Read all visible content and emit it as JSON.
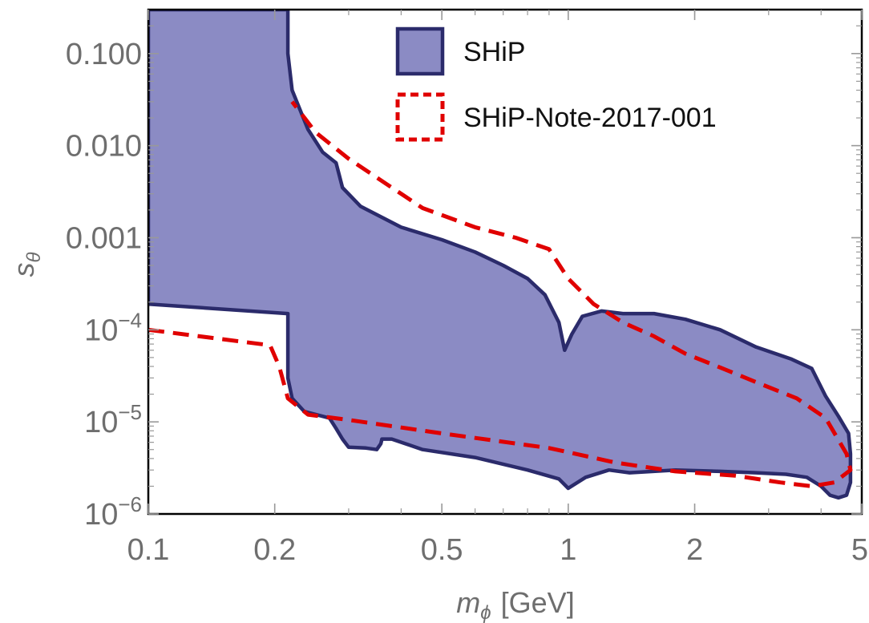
{
  "chart_data": {
    "type": "area",
    "x_scale": "log",
    "y_scale": "log",
    "xlabel": "m",
    "xlabel_sub": "ϕ",
    "xlabel_unit": "[GeV]",
    "ylabel": "s",
    "ylabel_sub": "θ",
    "xlim": [
      0.1,
      5.0
    ],
    "ylim": [
      1e-06,
      0.3
    ],
    "x_ticks": [
      {
        "value": 0.1,
        "label": "0.1"
      },
      {
        "value": 0.2,
        "label": "0.2"
      },
      {
        "value": 0.5,
        "label": "0.5"
      },
      {
        "value": 1,
        "label": "1"
      },
      {
        "value": 2,
        "label": "2"
      },
      {
        "value": 5,
        "label": "5"
      }
    ],
    "y_ticks": [
      {
        "value": 0.1,
        "label": "0.100"
      },
      {
        "value": 0.01,
        "label": "0.010"
      },
      {
        "value": 0.001,
        "label": "0.001"
      },
      {
        "value": 0.0001,
        "base": "10",
        "exp": "−4"
      },
      {
        "value": 1e-05,
        "base": "10",
        "exp": "−5"
      },
      {
        "value": 1e-06,
        "base": "10",
        "exp": "−6"
      }
    ],
    "grid": false,
    "legend_position": "top-right",
    "series": [
      {
        "name": "SHiP",
        "style": "filled-region",
        "fill": "#8b8bc4",
        "stroke": "#2b2b6b",
        "points": [
          [
            0.1,
            0.3
          ],
          [
            0.215,
            0.3
          ],
          [
            0.215,
            0.1
          ],
          [
            0.22,
            0.04
          ],
          [
            0.24,
            0.015
          ],
          [
            0.26,
            0.0085
          ],
          [
            0.28,
            0.0065
          ],
          [
            0.29,
            0.0035
          ],
          [
            0.32,
            0.0022
          ],
          [
            0.4,
            0.0013
          ],
          [
            0.5,
            0.00095
          ],
          [
            0.6,
            0.0007
          ],
          [
            0.7,
            0.0005
          ],
          [
            0.8,
            0.00036
          ],
          [
            0.88,
            0.00024
          ],
          [
            0.95,
            0.00012
          ],
          [
            0.98,
            6e-05
          ],
          [
            1.02,
            9e-05
          ],
          [
            1.08,
            0.00014
          ],
          [
            1.2,
            0.00016
          ],
          [
            1.35,
            0.00015
          ],
          [
            1.6,
            0.00015
          ],
          [
            1.9,
            0.00013
          ],
          [
            2.3,
            0.0001
          ],
          [
            2.8,
            6.5e-05
          ],
          [
            3.4,
            4.8e-05
          ],
          [
            3.8,
            3.8e-05
          ],
          [
            3.9,
            3e-05
          ],
          [
            4.1,
            1.9e-05
          ],
          [
            4.4,
            1.15e-05
          ],
          [
            4.65,
            7.5e-06
          ],
          [
            4.7,
            4.5e-06
          ],
          [
            4.7,
            2.2e-06
          ],
          [
            4.6,
            1.6e-06
          ],
          [
            4.4,
            1.5e-06
          ],
          [
            4.2,
            1.6e-06
          ],
          [
            4.0,
            2e-06
          ],
          [
            3.7,
            2.5e-06
          ],
          [
            3.3,
            2.7e-06
          ],
          [
            2.8,
            2.8e-06
          ],
          [
            2.3,
            2.9e-06
          ],
          [
            1.8,
            3e-06
          ],
          [
            1.4,
            2.8e-06
          ],
          [
            1.25,
            3e-06
          ],
          [
            1.1,
            2.5e-06
          ],
          [
            1.0,
            1.9e-06
          ],
          [
            0.95,
            2.4e-06
          ],
          [
            0.8,
            3e-06
          ],
          [
            0.6,
            4.1e-06
          ],
          [
            0.45,
            5e-06
          ],
          [
            0.38,
            6.5e-06
          ],
          [
            0.36,
            6.5e-06
          ],
          [
            0.358,
            5.8e-06
          ],
          [
            0.35,
            5e-06
          ],
          [
            0.33,
            5.2e-06
          ],
          [
            0.3,
            5.3e-06
          ],
          [
            0.29,
            6.5e-06
          ],
          [
            0.28,
            8.5e-06
          ],
          [
            0.27,
            1.1e-05
          ],
          [
            0.235,
            1.3e-05
          ],
          [
            0.22,
            1.8e-05
          ],
          [
            0.215,
            3e-05
          ],
          [
            0.215,
            0.00015
          ],
          [
            0.1,
            0.00019
          ]
        ]
      },
      {
        "name": "SHiP-Note-2017-001",
        "style": "dashed-line",
        "stroke": "#e00000",
        "points": [
          [
            0.1,
            0.0001
          ],
          [
            0.195,
            6.8e-05
          ],
          [
            0.205,
            4e-05
          ],
          [
            0.215,
            1.8e-05
          ],
          [
            0.24,
            1.2e-05
          ],
          [
            0.3,
            1.05e-05
          ],
          [
            0.5,
            7.5e-06
          ],
          [
            0.9,
            5.2e-06
          ],
          [
            1.3,
            3.6e-06
          ],
          [
            1.8,
            2.9e-06
          ],
          [
            2.5,
            2.6e-06
          ],
          [
            3.2,
            2.2e-06
          ],
          [
            3.8,
            2e-06
          ],
          [
            4.3,
            2.2e-06
          ],
          [
            4.7,
            3e-06
          ],
          [
            4.6,
            4.5e-06
          ],
          [
            4.1,
            1.1e-05
          ],
          [
            3.5,
            1.8e-05
          ],
          [
            2.8,
            2.7e-05
          ],
          [
            2.3,
            3.9e-05
          ],
          [
            1.9,
            5.5e-05
          ],
          [
            1.6,
            8.5e-05
          ],
          [
            1.35,
            0.00012
          ],
          [
            1.15,
            0.00019
          ],
          [
            1.0,
            0.00036
          ],
          [
            0.9,
            0.00075
          ],
          [
            0.75,
            0.001
          ],
          [
            0.6,
            0.0013
          ],
          [
            0.45,
            0.0021
          ],
          [
            0.37,
            0.0038
          ],
          [
            0.3,
            0.0072
          ],
          [
            0.25,
            0.014
          ],
          [
            0.22,
            0.03
          ]
        ]
      }
    ]
  }
}
